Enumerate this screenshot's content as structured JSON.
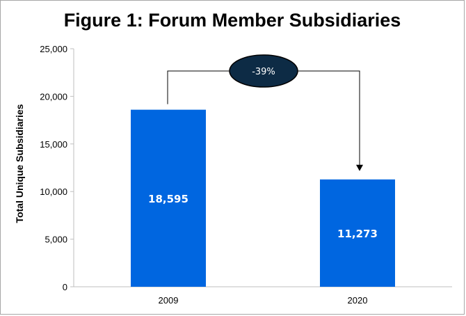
{
  "chart_data": {
    "type": "bar",
    "title": "Figure 1: Forum Member Subsidiaries",
    "ylabel": "Total Unique Subsidiaries",
    "xlabel": "",
    "categories": [
      "2009",
      "2020"
    ],
    "values": [
      18595,
      11273
    ],
    "data_labels": [
      "18,595",
      "11,273"
    ],
    "ylim": [
      0,
      25000
    ],
    "yticks": [
      0,
      5000,
      10000,
      15000,
      20000,
      25000
    ],
    "ytick_labels": [
      "0",
      "5,000",
      "10,000",
      "15,000",
      "20,000",
      "25,000"
    ],
    "annotation": "-39%",
    "bar_color": "#0066e0",
    "annotation_color": "#0d2b45",
    "grid": false,
    "legend": "none"
  }
}
